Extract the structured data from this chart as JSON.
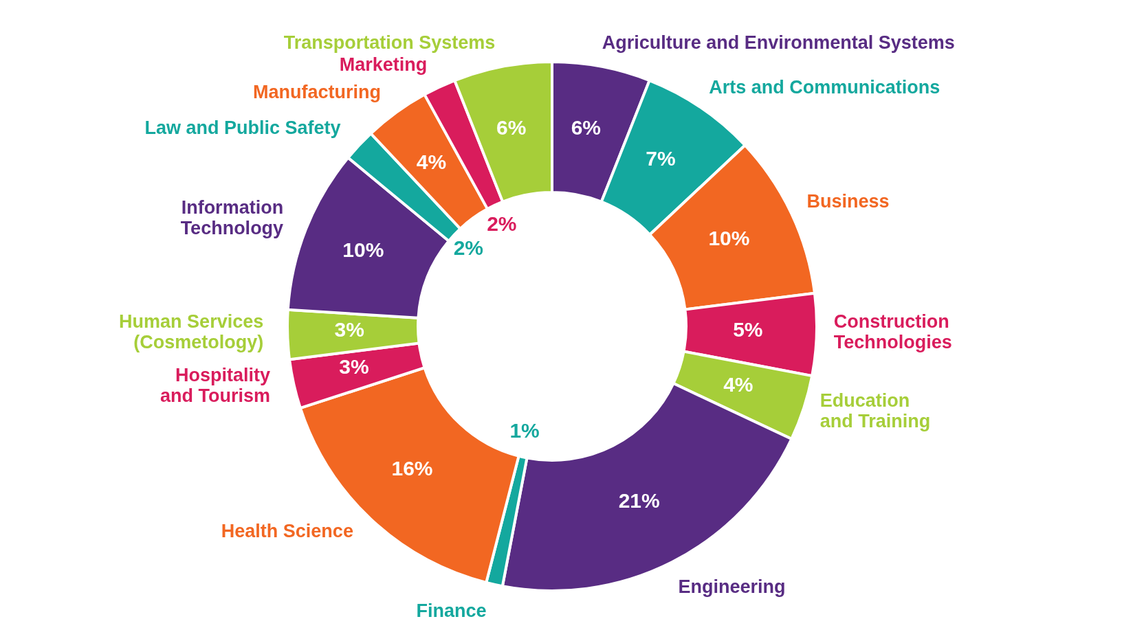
{
  "chart_data": {
    "type": "donut",
    "categories": [
      "Agriculture and Environmental Systems",
      "Arts and Communications",
      "Business",
      "Construction Technologies",
      "Education and Training",
      "Engineering",
      "Finance",
      "Health Science",
      "Hospitality and Tourism",
      "Human Services (Cosmetology)",
      "Information Technology",
      "Law and Public Safety",
      "Manufacturing",
      "Marketing",
      "Transportation Systems"
    ],
    "values": [
      6,
      7,
      10,
      5,
      4,
      21,
      1,
      16,
      3,
      3,
      10,
      2,
      4,
      2,
      6
    ],
    "value_labels": [
      "6%",
      "7%",
      "10%",
      "5%",
      "4%",
      "21%",
      "1%",
      "16%",
      "3%",
      "3%",
      "10%",
      "2%",
      "4%",
      "2%",
      "6%"
    ],
    "colors": [
      "#582c83",
      "#14a89e",
      "#f26722",
      "#d91c5c",
      "#a6ce39",
      "#582c83",
      "#14a89e",
      "#f26722",
      "#d91c5c",
      "#a6ce39",
      "#582c83",
      "#14a89e",
      "#f26722",
      "#d91c5c",
      "#a6ce39"
    ],
    "legend": false
  }
}
